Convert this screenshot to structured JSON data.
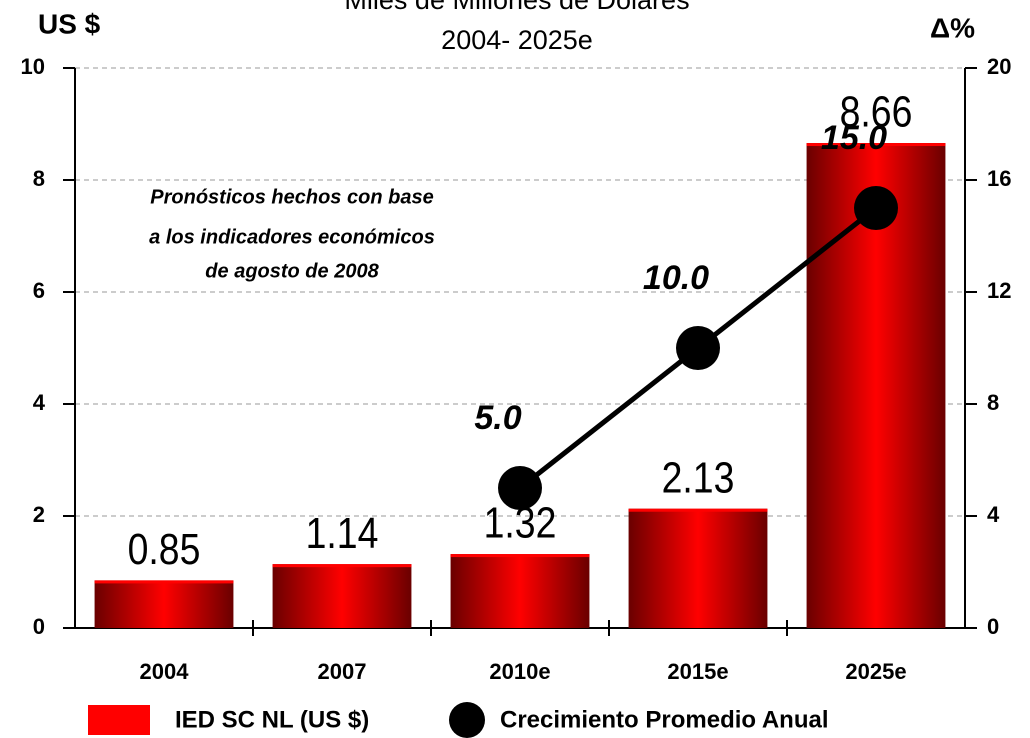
{
  "chart_data": {
    "type": "bar-line",
    "title": "Miles de Millones de Dólares",
    "subtitle": "2004- 2025e",
    "y_label": "US $",
    "y2_label": "Δ%",
    "annotation": [
      "Pronósticos  hechos con base",
      "a los indicadores económicos",
      "de agosto de 2008"
    ],
    "categories": [
      "2004",
      "2007",
      "2010e",
      "2015e",
      "2025e"
    ],
    "series": [
      {
        "name": "IED SC NL (US $)",
        "type": "bar",
        "color": "#ff0000",
        "values": [
          0.85,
          1.14,
          1.32,
          2.13,
          8.66
        ]
      },
      {
        "name": "Crecimiento Promedio Anual",
        "type": "line",
        "axis": "y2",
        "color": "#000000",
        "values": [
          null,
          null,
          5,
          10,
          15
        ],
        "value_labels": [
          null,
          null,
          "5.0",
          "10.0",
          "15.0"
        ]
      }
    ],
    "ylim": [
      0,
      10
    ],
    "yticks": [
      0,
      2,
      4,
      6,
      8,
      10
    ],
    "y2lim": [
      0,
      20
    ],
    "y2ticks": [
      0,
      4,
      8,
      12,
      16,
      20
    ],
    "grid": true
  }
}
